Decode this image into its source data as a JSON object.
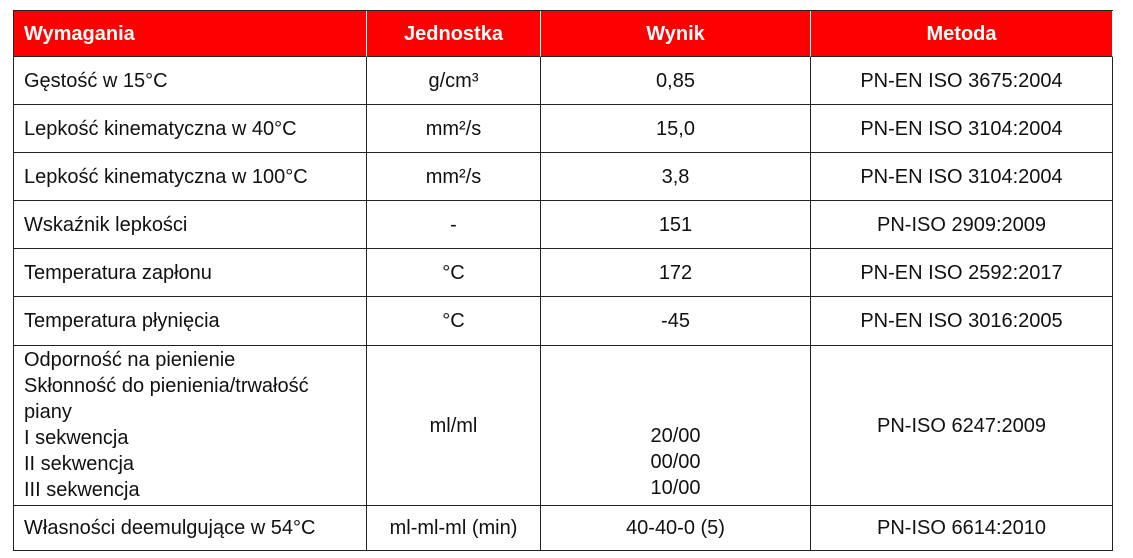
{
  "table": {
    "header": [
      "Wymagania",
      "Jednostka",
      "Wynik",
      "Metoda"
    ],
    "rows": [
      [
        "Gęstość w 15°C",
        "g/cm³",
        "0,85",
        "PN-EN ISO 3675:2004"
      ],
      [
        "Lepkość kinematyczna w 40°C",
        "mm²/s",
        "15,0",
        "PN-EN ISO 3104:2004"
      ],
      [
        "Lepkość kinematyczna w 100°C",
        "mm²/s",
        "3,8",
        "PN-EN ISO 3104:2004"
      ],
      [
        "Wskaźnik lepkości",
        "-",
        "151",
        "PN-ISO 2909:2009"
      ],
      [
        "Temperatura zapłonu",
        "°C",
        "172",
        "PN-EN ISO 2592:2017"
      ],
      [
        "Temperatura płynięcia",
        "°C",
        "-45",
        "PN-EN ISO 3016:2005"
      ],
      [
        [
          "Odporność na pienienie",
          "Skłonność do pienienia/trwałość",
          "piany",
          "I sekwencja",
          "II sekwencja",
          "III sekwencja"
        ],
        "ml/ml",
        [
          "20/00",
          "00/00",
          "10/00"
        ],
        "PN-ISO 6247:2009"
      ],
      [
        "Własności deemulgujące w 54°C",
        "ml-ml-ml (min)",
        "40-40-0 (5)",
        "PN-ISO 6614:2010"
      ]
    ]
  }
}
